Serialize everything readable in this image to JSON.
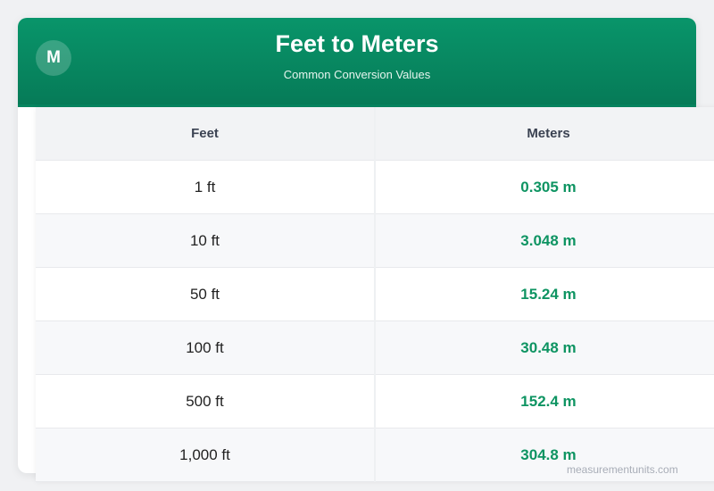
{
  "header": {
    "logo_letter": "M",
    "title": "Feet to Meters",
    "subtitle": "Common Conversion Values"
  },
  "table": {
    "columns": [
      "Feet",
      "Meters"
    ],
    "rows": [
      {
        "feet": "1 ft",
        "meters": "0.305 m"
      },
      {
        "feet": "10 ft",
        "meters": "3.048 m"
      },
      {
        "feet": "50 ft",
        "meters": "15.24 m"
      },
      {
        "feet": "100 ft",
        "meters": "30.48 m"
      },
      {
        "feet": "500 ft",
        "meters": "152.4 m"
      },
      {
        "feet": "1,000 ft",
        "meters": "304.8 m"
      }
    ]
  },
  "footer": {
    "watermark": "measurementunits.com"
  },
  "colors": {
    "accent": "#09956a",
    "value_text": "#0e9462"
  }
}
